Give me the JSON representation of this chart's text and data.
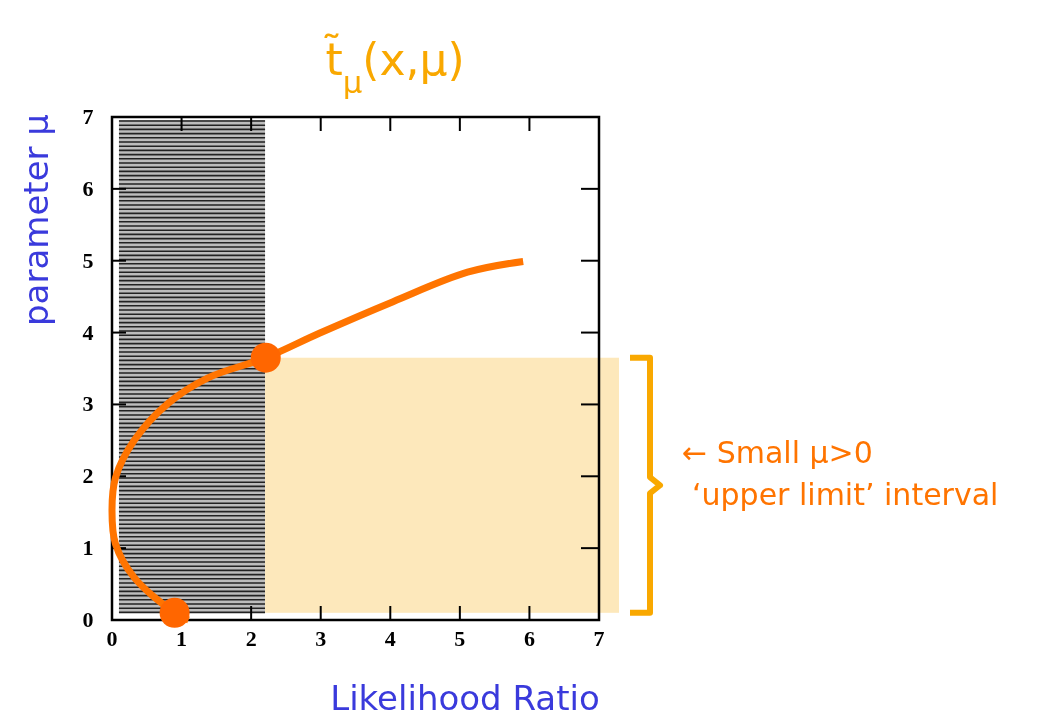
{
  "chart_data": {
    "type": "line",
    "title": "t̃$_{μ}$(x,μ)",
    "xlabel": "Likelihood Ratio",
    "ylabel": "parameter μ",
    "xlim": [
      0,
      7
    ],
    "ylim": [
      0,
      7
    ],
    "xticks": [
      0,
      1,
      2,
      3,
      4,
      5,
      6,
      7
    ],
    "yticks": [
      0,
      1,
      2,
      3,
      4,
      5,
      6,
      7
    ],
    "series": [
      {
        "color": "#ff7400",
        "x": [
          1.1,
          0.9,
          0.32,
          0.05,
          0,
          0.05,
          0.32,
          0.8,
          1.38,
          2.21,
          2.98,
          4.04,
          5.11,
          5.91
        ],
        "values": [
          0,
          0.1,
          0.59,
          1.06,
          1.52,
          1.98,
          2.5,
          3.01,
          3.37,
          3.65,
          3.99,
          4.43,
          4.84,
          4.99
        ]
      },
      {
        "type": "scatter",
        "color": "#ff6600",
        "marker": "circle",
        "x": [
          0.9,
          2.21
        ],
        "values": [
          0.1,
          3.65
        ]
      }
    ],
    "bands": [
      {
        "axis": "x",
        "from": 0.1,
        "to": 2.2,
        "color": "#222222"
      },
      {
        "axis": "y",
        "from": 0.1,
        "to": 3.65,
        "color": "#fde8bb"
      }
    ],
    "annotations": [
      "← Small μ>0",
      "‘upper limit’ interval"
    ]
  }
}
